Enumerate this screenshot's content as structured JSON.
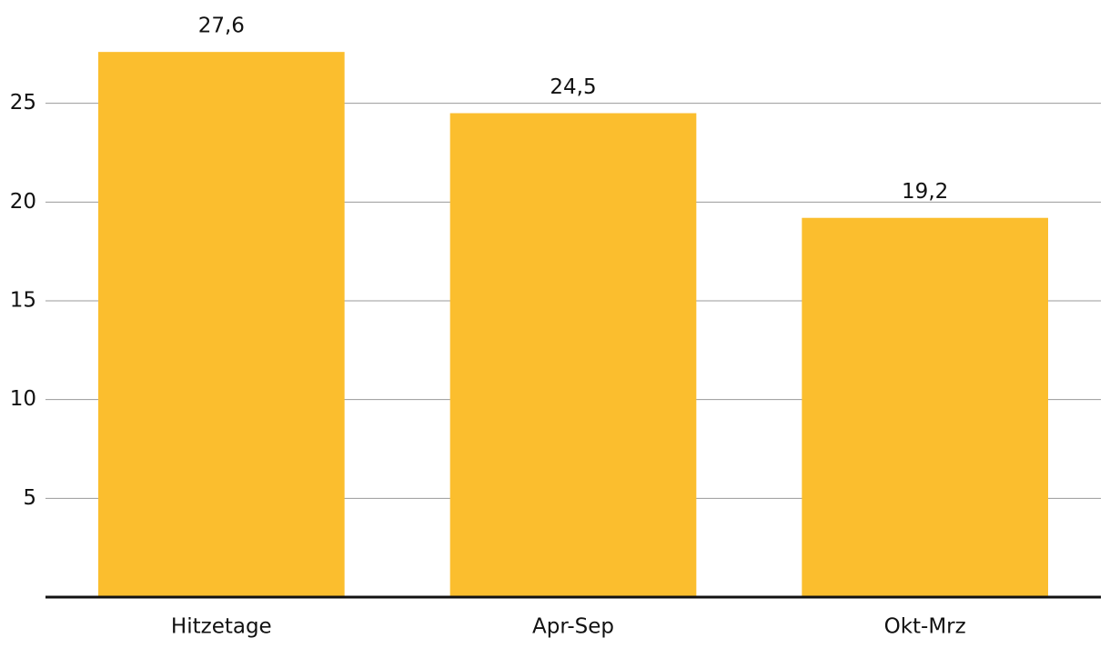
{
  "chart_data": {
    "type": "bar",
    "categories": [
      "Hitzetage",
      "Apr-Sep",
      "Okt-Mrz"
    ],
    "values": [
      27.6,
      24.5,
      19.2
    ],
    "value_labels": [
      "27,6",
      "24,5",
      "19,2"
    ],
    "color": "#fbbe2e",
    "ylim": [
      0,
      30
    ],
    "yticks": [
      5,
      10,
      15,
      20,
      25
    ],
    "grid": true
  }
}
